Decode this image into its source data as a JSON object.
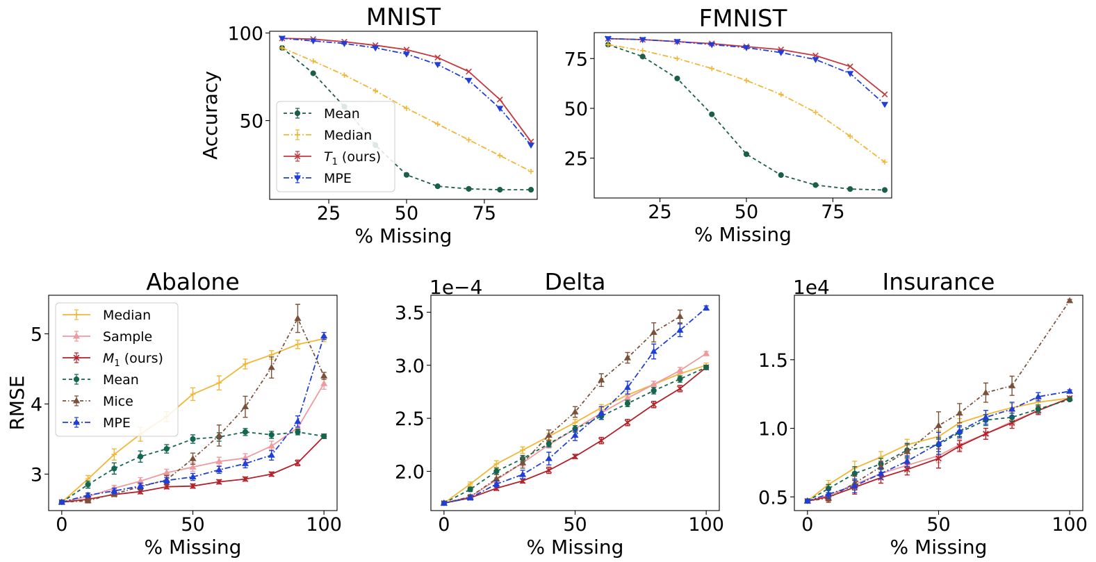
{
  "chart_data": [
    {
      "id": "mnist",
      "type": "line",
      "title": "MNIST",
      "xlabel": "% Missing",
      "ylabel": "Accuracy",
      "xlim": [
        6,
        92
      ],
      "ylim": [
        5,
        101
      ],
      "xticks": [
        25,
        50,
        75
      ],
      "yticks": [
        50,
        100
      ],
      "legend": "center-left",
      "x": [
        10,
        20,
        30,
        40,
        50,
        60,
        70,
        80,
        90
      ],
      "series": [
        {
          "name": "Mean",
          "color": "#1b5e4a",
          "dash": "5,4",
          "marker": "circle",
          "values": [
            91.5,
            77,
            58,
            36,
            19,
            12.5,
            11,
            10.5,
            10.5
          ]
        },
        {
          "name": "Median",
          "color": "#f2b634",
          "dash": "8,3,2,3",
          "marker": "plus",
          "values": [
            91.5,
            84,
            76,
            67,
            57,
            48,
            39,
            30,
            21
          ]
        },
        {
          "name": "T1 (ours)",
          "color": "#c6373d",
          "dash": "",
          "marker": "x",
          "values": [
            97,
            96.5,
            95,
            93,
            90.5,
            86,
            78,
            62,
            38
          ]
        },
        {
          "name": "MPE",
          "color": "#1f3fd8",
          "dash": "8,3,2,3",
          "marker": "tri-down",
          "values": [
            97,
            95.5,
            94,
            91.5,
            88,
            82,
            73,
            57,
            36
          ]
        }
      ]
    },
    {
      "id": "fmnist",
      "type": "line",
      "title": "FMNIST",
      "xlabel": "% Missing",
      "ylabel": "",
      "xlim": [
        6,
        92
      ],
      "ylim": [
        5,
        88
      ],
      "xticks": [
        25,
        50,
        75
      ],
      "yticks": [
        25,
        50,
        75
      ],
      "legend": "",
      "x": [
        10,
        20,
        30,
        40,
        50,
        60,
        70,
        80,
        90
      ],
      "series": [
        {
          "name": "Mean",
          "color": "#1b5e4a",
          "dash": "5,4",
          "marker": "circle",
          "values": [
            82,
            76,
            65,
            47,
            27,
            16.5,
            11.5,
            9.5,
            9
          ]
        },
        {
          "name": "Median",
          "color": "#f2b634",
          "dash": "8,3,2,3",
          "marker": "plus",
          "values": [
            82,
            79,
            75,
            70,
            64,
            57,
            48,
            36,
            23
          ]
        },
        {
          "name": "T1 (ours)",
          "color": "#c6373d",
          "dash": "",
          "marker": "x",
          "values": [
            85,
            84.5,
            83.5,
            82.5,
            81,
            79.5,
            76.5,
            71,
            57
          ]
        },
        {
          "name": "MPE",
          "color": "#1f3fd8",
          "dash": "8,3,2,3",
          "marker": "tri-down",
          "values": [
            85,
            84.5,
            83.5,
            82,
            80.5,
            78,
            74.5,
            67.5,
            52
          ]
        }
      ]
    },
    {
      "id": "abalone",
      "type": "line",
      "title": "Abalone",
      "xlabel": "% Missing",
      "ylabel": "RMSE",
      "xlim": [
        -5,
        105
      ],
      "ylim": [
        2.48,
        5.55
      ],
      "xticks": [
        0,
        50,
        100
      ],
      "yticks": [
        3,
        4,
        5
      ],
      "offset": "",
      "legend": "upper-left",
      "x": [
        0,
        10,
        20,
        30,
        40,
        50,
        60,
        70,
        80,
        90,
        100
      ],
      "series": [
        {
          "name": "Median",
          "color": "#f2b634",
          "dash": "",
          "marker": "plus",
          "values": [
            2.6,
            2.93,
            3.28,
            3.57,
            3.82,
            4.14,
            4.3,
            4.57,
            4.7,
            4.85,
            4.93
          ],
          "err": [
            0.03,
            0.05,
            0.08,
            0.1,
            0.07,
            0.09,
            0.1,
            0.07,
            0.06,
            0.06,
            0.04
          ]
        },
        {
          "name": "Sample",
          "color": "#ee9a9e",
          "dash": "",
          "marker": "tri-up",
          "values": [
            2.6,
            2.68,
            2.8,
            2.9,
            3.02,
            3.1,
            3.18,
            3.23,
            3.4,
            3.66,
            4.29
          ],
          "err": [
            0.02,
            0.03,
            0.04,
            0.05,
            0.05,
            0.06,
            0.06,
            0.06,
            0.07,
            0.08,
            0.08
          ]
        },
        {
          "name": "M1 (ours)",
          "color": "#b22028",
          "dash": "",
          "marker": "x",
          "values": [
            2.6,
            2.64,
            2.71,
            2.75,
            2.82,
            2.83,
            2.89,
            2.93,
            3.0,
            3.16,
            3.54
          ],
          "err": [
            0.02,
            0.02,
            0.03,
            0.03,
            0.03,
            0.03,
            0.03,
            0.03,
            0.03,
            0.04,
            0.03
          ]
        },
        {
          "name": "Mean",
          "color": "#14664f",
          "dash": "5,4",
          "marker": "circle",
          "values": [
            2.6,
            2.85,
            3.08,
            3.25,
            3.36,
            3.5,
            3.53,
            3.6,
            3.56,
            3.6,
            3.54
          ],
          "err": [
            0.02,
            0.05,
            0.08,
            0.08,
            0.06,
            0.06,
            0.06,
            0.05,
            0.05,
            0.04,
            0.03
          ]
        },
        {
          "name": "Mice",
          "color": "#7b5038",
          "dash": "5,3,1.5,3",
          "marker": "tri-up",
          "values": [
            2.6,
            2.62,
            2.72,
            2.82,
            2.92,
            3.22,
            3.55,
            3.96,
            4.52,
            5.22,
            4.4
          ],
          "err": [
            0.02,
            0.03,
            0.04,
            0.05,
            0.06,
            0.08,
            0.15,
            0.15,
            0.15,
            0.2,
            0.05
          ]
        },
        {
          "name": "MPE",
          "color": "#1f3fd8",
          "dash": "8,3,2,3",
          "marker": "tri-up",
          "values": [
            2.6,
            2.7,
            2.76,
            2.83,
            2.91,
            2.96,
            3.06,
            3.15,
            3.27,
            3.75,
            4.97
          ],
          "err": [
            0.02,
            0.03,
            0.04,
            0.04,
            0.04,
            0.05,
            0.05,
            0.06,
            0.07,
            0.08,
            0.05
          ]
        }
      ]
    },
    {
      "id": "delta",
      "type": "line",
      "title": "Delta",
      "xlabel": "% Missing",
      "ylabel": "",
      "xlim": [
        -5,
        105
      ],
      "ylim": [
        1.63,
        3.66
      ],
      "xticks": [
        0,
        50,
        100
      ],
      "yticks": [
        2.0,
        2.5,
        3.0,
        3.5
      ],
      "offset": "1e−4",
      "legend": "",
      "x": [
        0,
        10,
        20,
        30,
        40,
        50,
        60,
        70,
        80,
        90,
        100
      ],
      "series": [
        {
          "name": "Median",
          "color": "#f2b634",
          "dash": "",
          "marker": "plus",
          "values": [
            1.7,
            1.88,
            2.07,
            2.2,
            2.33,
            2.46,
            2.6,
            2.72,
            2.82,
            2.92,
            3.0
          ],
          "err": [
            0.01,
            0.02,
            0.03,
            0.03,
            0.03,
            0.03,
            0.03,
            0.03,
            0.03,
            0.03,
            0.02
          ]
        },
        {
          "name": "Sample",
          "color": "#ee9a9e",
          "dash": "",
          "marker": "tri-up",
          "values": [
            1.7,
            1.76,
            1.92,
            2.08,
            2.25,
            2.4,
            2.55,
            2.69,
            2.82,
            2.95,
            3.11
          ],
          "err": [
            0.01,
            0.02,
            0.02,
            0.03,
            0.03,
            0.03,
            0.03,
            0.03,
            0.03,
            0.03,
            0.02
          ]
        },
        {
          "name": "M1 (ours)",
          "color": "#b22028",
          "dash": "",
          "marker": "x",
          "values": [
            1.7,
            1.75,
            1.84,
            1.91,
            2.01,
            2.14,
            2.29,
            2.46,
            2.63,
            2.78,
            2.98
          ],
          "err": [
            0.01,
            0.01,
            0.02,
            0.02,
            0.03,
            0.02,
            0.03,
            0.03,
            0.03,
            0.03,
            0.02
          ]
        },
        {
          "name": "Mean",
          "color": "#14664f",
          "dash": "5,4",
          "marker": "circle",
          "values": [
            1.7,
            1.83,
            2.0,
            2.12,
            2.26,
            2.4,
            2.52,
            2.64,
            2.76,
            2.87,
            2.98
          ],
          "err": [
            0.01,
            0.02,
            0.03,
            0.03,
            0.03,
            0.03,
            0.03,
            0.03,
            0.03,
            0.03,
            0.02
          ]
        },
        {
          "name": "Mice",
          "color": "#7b5038",
          "dash": "5,3,1.5,3",
          "marker": "tri-up",
          "values": [
            1.7,
            1.76,
            1.93,
            2.08,
            2.34,
            2.56,
            2.86,
            3.07,
            3.31,
            3.46,
            null
          ],
          "err": [
            0.01,
            0.02,
            0.04,
            0.05,
            0.05,
            0.05,
            0.06,
            0.05,
            0.09,
            0.06,
            0
          ]
        },
        {
          "name": "MPE",
          "color": "#1f3fd8",
          "dash": "8,3,2,3",
          "marker": "tri-up",
          "values": [
            1.7,
            1.75,
            1.88,
            1.97,
            2.12,
            2.34,
            2.55,
            2.79,
            3.13,
            3.33,
            3.54
          ],
          "err": [
            0.01,
            0.02,
            0.03,
            0.04,
            0.06,
            0.05,
            0.06,
            0.06,
            0.07,
            0.06,
            0.02
          ]
        }
      ]
    },
    {
      "id": "insurance",
      "type": "line",
      "title": "Insurance",
      "xlabel": "% Missing",
      "ylabel": "",
      "xlim": [
        -5,
        105
      ],
      "ylim": [
        0.4,
        1.97
      ],
      "xticks": [
        0,
        50,
        100
      ],
      "yticks": [
        0.5,
        1.0,
        1.5
      ],
      "offset": "1e4",
      "legend": "",
      "x": [
        0,
        8,
        18,
        28,
        38,
        50,
        58,
        68,
        78,
        88,
        100
      ],
      "series": [
        {
          "name": "Median",
          "color": "#f2b634",
          "dash": "",
          "marker": "plus",
          "values": [
            0.47,
            0.59,
            0.71,
            0.79,
            0.88,
            0.94,
            1.04,
            1.1,
            1.15,
            1.19,
            1.22
          ],
          "err": [
            0.01,
            0.03,
            0.05,
            0.04,
            0.04,
            0.04,
            0.03,
            0.03,
            0.03,
            0.02,
            0.01
          ]
        },
        {
          "name": "Sample",
          "color": "#ee9a9e",
          "dash": "",
          "marker": "tri-up",
          "values": [
            0.47,
            0.51,
            0.59,
            0.67,
            0.73,
            0.8,
            0.88,
            0.96,
            1.05,
            1.13,
            1.22
          ],
          "err": [
            0.01,
            0.02,
            0.04,
            0.04,
            0.04,
            0.05,
            0.04,
            0.04,
            0.03,
            0.03,
            0.01
          ]
        },
        {
          "name": "M1 (ours)",
          "color": "#b22028",
          "dash": "",
          "marker": "x",
          "values": [
            0.47,
            0.5,
            0.57,
            0.64,
            0.7,
            0.78,
            0.87,
            0.96,
            1.04,
            1.13,
            1.22
          ],
          "err": [
            0.01,
            0.03,
            0.05,
            0.04,
            0.04,
            0.07,
            0.04,
            0.04,
            0.04,
            0.03,
            0.01
          ]
        },
        {
          "name": "Mean",
          "color": "#14664f",
          "dash": "5,4",
          "marker": "circle",
          "values": [
            0.47,
            0.56,
            0.67,
            0.74,
            0.84,
            0.88,
            0.97,
            1.06,
            1.08,
            1.14,
            1.21
          ],
          "err": [
            0.01,
            0.03,
            0.05,
            0.04,
            0.05,
            0.05,
            0.04,
            0.04,
            0.03,
            0.03,
            0.01
          ]
        },
        {
          "name": "Mice",
          "color": "#7b5038",
          "dash": "5,3,1.5,3",
          "marker": "tri-up",
          "values": [
            0.47,
            0.49,
            0.6,
            0.72,
            0.83,
            1.02,
            1.11,
            1.26,
            1.31,
            null,
            1.93
          ],
          "err": [
            0.01,
            0.03,
            0.05,
            0.04,
            0.05,
            0.1,
            0.07,
            0.07,
            0.07,
            0,
            0.01
          ]
        },
        {
          "name": "MPE",
          "color": "#1f3fd8",
          "dash": "8,3,2,3",
          "marker": "tri-up",
          "values": [
            0.47,
            0.52,
            0.58,
            0.67,
            0.76,
            0.89,
            0.98,
            1.08,
            1.14,
            1.23,
            1.27
          ],
          "err": [
            0.01,
            0.03,
            0.05,
            0.04,
            0.04,
            0.08,
            0.04,
            0.05,
            0.05,
            0.03,
            0.01
          ]
        }
      ]
    }
  ]
}
